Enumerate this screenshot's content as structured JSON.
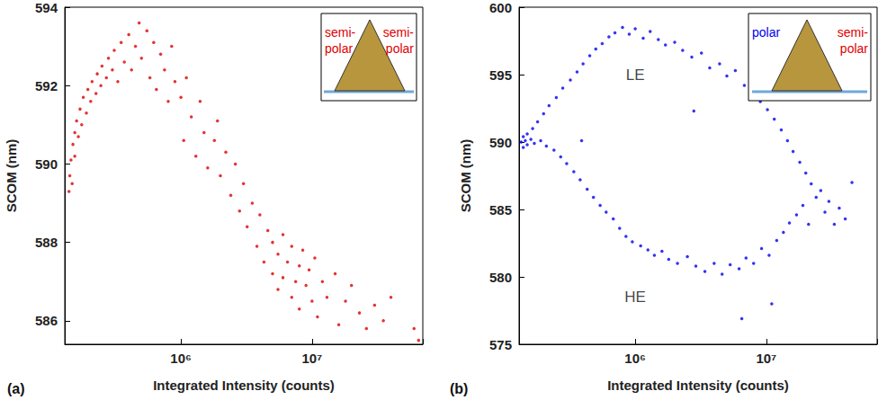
{
  "chart_data": [
    {
      "type": "scatter",
      "panel_label": "(a)",
      "xlabel": "Integrated Intensity (counts)",
      "ylabel": "SCOM (nm)",
      "log": "x",
      "grid": false,
      "xlim": [
        130000,
        70000000
      ],
      "ylim": [
        585.4,
        594
      ],
      "xticks": [
        {
          "value": 1000000,
          "label": "10⁶"
        },
        {
          "value": 10000000,
          "label": "10⁷"
        }
      ],
      "yticks": [
        586,
        588,
        590,
        592,
        594
      ],
      "inset": {
        "left": {
          "lines": [
            "semi-",
            "polar"
          ],
          "color": "#e00000"
        },
        "right": {
          "lines": [
            "semi-",
            "polar"
          ],
          "color": "#e00000"
        }
      },
      "series": [
        {
          "color": "#dd0000",
          "marker": "circle",
          "x": [
            140000.0,
            142000.0,
            145000.0,
            148000.0,
            150000.0,
            155000.0,
            155000.0,
            160000.0,
            165000.0,
            170000.0,
            175000.0,
            180000.0,
            190000.0,
            195000.0,
            205000.0,
            210000.0,
            225000.0,
            230000.0,
            245000.0,
            250000.0,
            270000.0,
            280000.0,
            300000.0,
            310000.0,
            330000.0,
            350000.0,
            370000.0,
            400000.0,
            420000.0,
            450000.0,
            480000.0,
            500000.0,
            550000.0,
            580000.0,
            620000.0,
            650000.0,
            700000.0,
            750000.0,
            800000.0,
            850000.0,
            900000.0,
            1000000.0,
            1050000.0,
            1100000.0,
            1200000.0,
            1300000.0,
            1400000.0,
            1500000.0,
            1600000.0,
            1800000.0,
            1900000.0,
            2000000.0,
            2200000.0,
            2400000.0,
            2600000.0,
            2800000.0,
            3000000.0,
            3200000.0,
            3500000.0,
            3800000.0,
            4000000.0,
            4300000.0,
            4600000.0,
            5000000.0,
            5000000.0,
            5500000.0,
            5500000.0,
            6000000.0,
            6000000.0,
            6500000.0,
            7000000.0,
            7000000.0,
            7500000.0,
            8000000.0,
            8000000.0,
            8500000.0,
            9000000.0,
            9500000.0,
            10000000.0,
            10500000.0,
            11000000.0,
            12000000.0,
            13000000.0,
            15000000.0,
            16000000.0,
            18000000.0,
            20000000.0,
            23000000.0,
            26000000.0,
            30000000.0,
            35000000.0,
            40000000.0,
            60000000.0,
            65000000.0
          ],
          "values": [
            589.3,
            589.7,
            590.1,
            589.5,
            590.5,
            590.8,
            590.2,
            591.1,
            590.7,
            591.4,
            591.0,
            591.7,
            591.3,
            591.9,
            591.6,
            592.1,
            591.8,
            592.3,
            592.0,
            592.5,
            592.2,
            592.7,
            592.4,
            592.9,
            592.1,
            593.1,
            592.6,
            593.3,
            592.4,
            593.0,
            593.6,
            592.7,
            593.4,
            592.2,
            593.1,
            591.9,
            592.8,
            592.4,
            591.6,
            593.0,
            592.1,
            591.7,
            590.6,
            592.2,
            591.2,
            590.2,
            591.6,
            590.8,
            589.9,
            590.6,
            591.1,
            589.7,
            590.3,
            589.2,
            590.0,
            588.8,
            589.5,
            588.4,
            589.0,
            587.9,
            588.7,
            587.5,
            588.3,
            587.2,
            588.0,
            587.7,
            586.8,
            588.2,
            587.1,
            587.5,
            586.6,
            587.9,
            587.0,
            587.4,
            586.3,
            587.8,
            586.9,
            587.3,
            586.5,
            587.6,
            586.1,
            587.0,
            586.6,
            587.2,
            585.9,
            586.5,
            586.9,
            586.2,
            585.8,
            586.4,
            586.0,
            586.6,
            585.8,
            585.5
          ]
        }
      ]
    },
    {
      "type": "scatter",
      "panel_label": "(b)",
      "xlabel": "Integrated Intensity (counts)",
      "ylabel": "SCOM (nm)",
      "log": "x",
      "grid": false,
      "xlim": [
        130000,
        70000000
      ],
      "ylim": [
        575,
        600
      ],
      "xticks": [
        {
          "value": 1000000,
          "label": "10⁶"
        },
        {
          "value": 10000000,
          "label": "10⁷"
        }
      ],
      "yticks": [
        575,
        580,
        585,
        590,
        595,
        600
      ],
      "inset": {
        "left": {
          "lines": [
            "polar"
          ],
          "color": "#0000ee"
        },
        "right": {
          "lines": [
            "semi-",
            "polar"
          ],
          "color": "#e00000"
        }
      },
      "annotations": [
        {
          "text": "LE",
          "x": 1000000,
          "y": 595
        },
        {
          "text": "HE",
          "x": 1000000,
          "y": 578.5
        }
      ],
      "series": [
        {
          "color": "#0000ee",
          "marker": "circle",
          "x": [
            135000.0,
            140000.0,
            140000.0,
            145000.0,
            150000.0,
            150000.0,
            160000.0,
            165000.0,
            170000.0,
            180000.0,
            190000.0,
            200000.0,
            210000.0,
            220000.0,
            240000.0,
            250000.0,
            270000.0,
            280000.0,
            300000.0,
            320000.0,
            340000.0,
            360000.0,
            380000.0,
            400000.0,
            430000.0,
            450000.0,
            480000.0,
            500000.0,
            540000.0,
            560000.0,
            600000.0,
            630000.0,
            680000.0,
            700000.0,
            760000.0,
            800000.0,
            850000.0,
            900000.0,
            950000.0,
            1000000.0,
            1100000.0,
            1150000.0,
            1250000.0,
            1300000.0,
            1400000.0,
            1500000.0,
            1600000.0,
            1700000.0,
            1800000.0,
            2000000.0,
            2100000.0,
            2300000.0,
            2500000.0,
            2700000.0,
            2900000.0,
            3200000.0,
            3400000.0,
            3700000.0,
            4000000.0,
            4400000.0,
            4600000.0,
            5000000.0,
            5300000.0,
            5800000.0,
            6200000.0,
            6800000.0,
            7000000.0,
            7800000.0,
            8000000.0,
            9000000.0,
            9200000.0,
            10200000.0,
            10500000.0,
            11500000.0,
            12000000.0,
            13000000.0,
            13500000.0,
            14500000.0,
            15000000.0,
            16000000.0,
            17000000.0,
            18000000.0,
            19000000.0,
            20000000.0,
            21000000.0,
            22000000.0,
            24000000.0,
            26000000.0,
            28000000.0,
            30000000.0,
            33000000.0,
            36000000.0,
            40000000.0,
            45000000.0,
            11000000.0,
            6500000.0,
            390000.0,
            2800000.0
          ],
          "values": [
            590.0,
            589.6,
            590.4,
            590.1,
            589.8,
            590.6,
            590.2,
            591.0,
            589.9,
            591.5,
            590.1,
            592.1,
            589.7,
            592.7,
            589.4,
            593.3,
            588.9,
            594.0,
            588.4,
            594.6,
            587.8,
            595.2,
            587.2,
            595.8,
            586.5,
            596.4,
            585.9,
            596.9,
            585.3,
            597.3,
            584.8,
            597.8,
            584.3,
            598.1,
            583.6,
            598.5,
            583.0,
            598.0,
            582.6,
            598.4,
            582.3,
            597.7,
            582.0,
            598.2,
            581.6,
            597.6,
            581.9,
            597.2,
            581.3,
            597.4,
            581.0,
            596.8,
            581.5,
            596.3,
            580.8,
            596.6,
            580.4,
            595.5,
            581.0,
            595.8,
            580.2,
            594.9,
            580.9,
            595.3,
            580.6,
            594.2,
            581.4,
            593.6,
            581.0,
            593.0,
            582.1,
            592.4,
            581.6,
            591.7,
            582.7,
            590.9,
            583.3,
            590.1,
            584.0,
            589.3,
            584.6,
            588.5,
            585.3,
            587.7,
            583.9,
            586.9,
            585.9,
            586.4,
            584.8,
            585.6,
            583.9,
            585.1,
            584.3,
            587.0,
            578.0,
            576.9,
            590.1,
            592.3
          ]
        }
      ]
    }
  ]
}
